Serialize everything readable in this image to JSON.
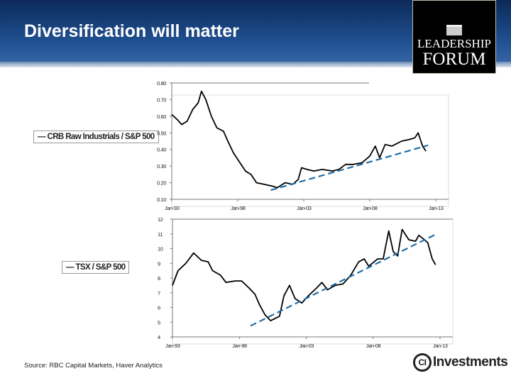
{
  "slide": {
    "title": "Diversification will matter",
    "source": "Source: RBC Capital Markets, Haver Analytics",
    "logo_top": {
      "line1": "LEADERSHIP",
      "line2": "FORUM"
    },
    "logo_bottom": {
      "mark": "CI",
      "text": "Investments"
    }
  },
  "colors": {
    "header": "#1f4f8f",
    "series": "#000000",
    "trend": "#1f6fa8"
  },
  "chart_data": [
    {
      "type": "line",
      "title": "",
      "legend": "CRB Raw Industrials / S&P 500",
      "legend_placement": "left",
      "grid": false,
      "ylim": [
        0.1,
        0.8
      ],
      "yticks": [
        "0.10",
        "0.20",
        "0.30",
        "0.40",
        "0.50",
        "0.60",
        "0.70",
        "0.80"
      ],
      "xlim": [
        "1993-01",
        "2013-01"
      ],
      "xticks": [
        "Jan-93",
        "Jan-98",
        "Jan-03",
        "Jan-08",
        "Jan-13"
      ],
      "series": [
        {
          "x": [
            "1993-01",
            "1993-06",
            "1993-10",
            "1994-03",
            "1994-08",
            "1995-01",
            "1995-04",
            "1995-08",
            "1996-01",
            "1996-06",
            "1996-12",
            "1997-04",
            "1997-09",
            "1998-03",
            "1998-08",
            "1999-01",
            "1999-06",
            "2000-01",
            "2000-08",
            "2001-01",
            "2001-08",
            "2002-03",
            "2002-08",
            "2002-11",
            "2003-04",
            "2003-10",
            "2004-06",
            "2005-03",
            "2005-09",
            "2006-03",
            "2006-10",
            "2007-06",
            "2008-01",
            "2008-06",
            "2008-10",
            "2009-03",
            "2009-09",
            "2010-06",
            "2011-01",
            "2011-06",
            "2011-09",
            "2012-01",
            "2012-04"
          ],
          "y": [
            0.61,
            0.58,
            0.55,
            0.57,
            0.64,
            0.68,
            0.75,
            0.7,
            0.6,
            0.53,
            0.51,
            0.45,
            0.38,
            0.32,
            0.27,
            0.25,
            0.2,
            0.19,
            0.18,
            0.17,
            0.2,
            0.19,
            0.22,
            0.29,
            0.28,
            0.27,
            0.28,
            0.27,
            0.28,
            0.31,
            0.31,
            0.32,
            0.36,
            0.42,
            0.35,
            0.43,
            0.42,
            0.45,
            0.46,
            0.47,
            0.5,
            0.42,
            0.39
          ]
        }
      ],
      "trendline": {
        "x": [
          "2000-07",
          "2012-06"
        ],
        "y": [
          0.155,
          0.425
        ],
        "style": "dashed"
      }
    },
    {
      "type": "line",
      "title": "",
      "legend": "TSX / S&P 500",
      "legend_placement": "left",
      "grid": false,
      "ylim": [
        4,
        12
      ],
      "yticks": [
        "4",
        "5",
        "6",
        "7",
        "8",
        "9",
        "10",
        "11",
        "12"
      ],
      "xlim": [
        "1993-01",
        "2013-01"
      ],
      "xticks": [
        "Jan-93",
        "Jan-98",
        "Jan-03",
        "Jan-08",
        "Jan-13"
      ],
      "series": [
        {
          "x": [
            "1993-01",
            "1993-06",
            "1994-01",
            "1994-08",
            "1995-03",
            "1995-09",
            "1996-01",
            "1996-08",
            "1997-01",
            "1997-09",
            "1998-03",
            "1998-10",
            "1999-03",
            "1999-07",
            "1999-12",
            "2000-05",
            "2001-01",
            "2001-05",
            "2001-10",
            "2002-03",
            "2002-09",
            "2003-03",
            "2003-10",
            "2004-03",
            "2004-08",
            "2005-03",
            "2005-10",
            "2006-05",
            "2006-12",
            "2007-05",
            "2007-09",
            "2008-05",
            "2008-10",
            "2009-03",
            "2009-07",
            "2009-11",
            "2010-03",
            "2010-09",
            "2011-03",
            "2011-06",
            "2011-11",
            "2012-02",
            "2012-06",
            "2012-09"
          ],
          "y": [
            7.5,
            8.5,
            9.0,
            9.7,
            9.2,
            9.1,
            8.5,
            8.2,
            7.7,
            7.8,
            7.8,
            7.3,
            6.9,
            6.2,
            5.5,
            5.1,
            5.4,
            6.8,
            7.5,
            6.6,
            6.3,
            6.8,
            7.3,
            7.7,
            7.2,
            7.5,
            7.6,
            8.2,
            9.1,
            9.3,
            8.8,
            9.3,
            9.3,
            11.2,
            9.8,
            9.5,
            11.3,
            10.6,
            10.5,
            10.9,
            10.6,
            10.4,
            9.3,
            8.9
          ]
        }
      ],
      "trendline": {
        "x": [
          "1998-11",
          "2012-10"
        ],
        "y": [
          4.75,
          11.0
        ],
        "style": "dashed"
      }
    }
  ]
}
